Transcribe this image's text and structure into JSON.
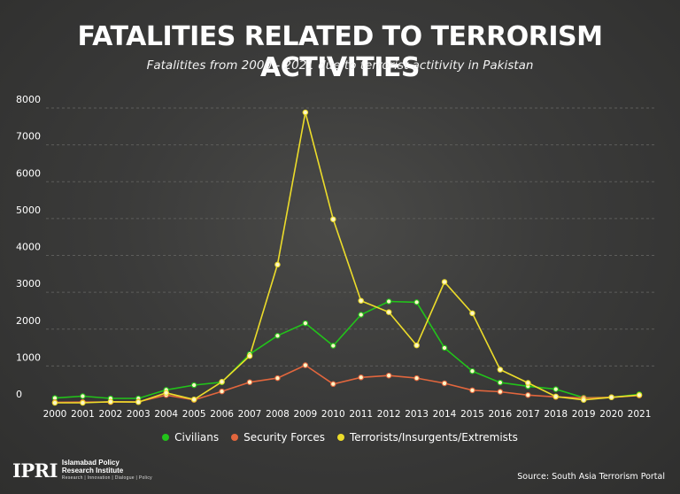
{
  "title": "FATALITIES RELATED TO TERRORISM ACTIVITIES",
  "subtitle": "Fatalitites from 2000 - 2021 due to terrorist actitivity in Pakistan",
  "source": "Source: South Asia Terrorism Portal",
  "logo": {
    "mark": "IPRI",
    "name_line1": "Islamabad Policy",
    "name_line2": "Research Institute",
    "tagline": "Research | Innovation | Dialogue | Policy"
  },
  "legend": [
    "Civilians",
    "Security Forces",
    "Terrorists/Insurgents/Extremists"
  ],
  "colors": {
    "Civilians": "#22c31a",
    "Security Forces": "#e2663d",
    "Terrorists/Insurgents/Extremists": "#ecdc2a",
    "marker_fill": "#fdf6c8",
    "grid": "#5d5d5b"
  },
  "chart_data": {
    "type": "line",
    "title": "FATALITIES RELATED TO TERRORISM ACTIVITIES",
    "subtitle": "Fatalitites from 2000 - 2021 due to terrorist actitivity in Pakistan",
    "x": [
      "2000",
      "2001",
      "2002",
      "2003",
      "2004",
      "2005",
      "2006",
      "2007",
      "2008",
      "2009",
      "2010",
      "2011",
      "2012",
      "2013",
      "2014",
      "2015",
      "2016",
      "2017",
      "2018",
      "2019",
      "2020",
      "2021"
    ],
    "yticks": [
      0,
      1000,
      2000,
      3000,
      4000,
      5000,
      6000,
      7000,
      8000
    ],
    "ylim": [
      0,
      8000
    ],
    "grid": true,
    "legend_position": "bottom",
    "series": [
      {
        "name": "Civilians",
        "values": [
          130,
          180,
          120,
          120,
          350,
          480,
          560,
          1320,
          1820,
          2160,
          1550,
          2390,
          2750,
          2730,
          1490,
          860,
          550,
          450,
          370,
          140,
          150,
          230
        ]
      },
      {
        "name": "Security Forces",
        "values": [
          15,
          20,
          20,
          30,
          210,
          80,
          310,
          560,
          670,
          1020,
          510,
          690,
          740,
          670,
          530,
          340,
          300,
          210,
          160,
          130,
          150,
          200
        ]
      },
      {
        "name": "Terrorists/Insurgents/Extremists",
        "values": [
          0,
          0,
          30,
          20,
          270,
          90,
          570,
          1270,
          3750,
          7880,
          4980,
          2770,
          2460,
          1560,
          3280,
          2430,
          900,
          540,
          170,
          80,
          150,
          210
        ]
      }
    ]
  }
}
